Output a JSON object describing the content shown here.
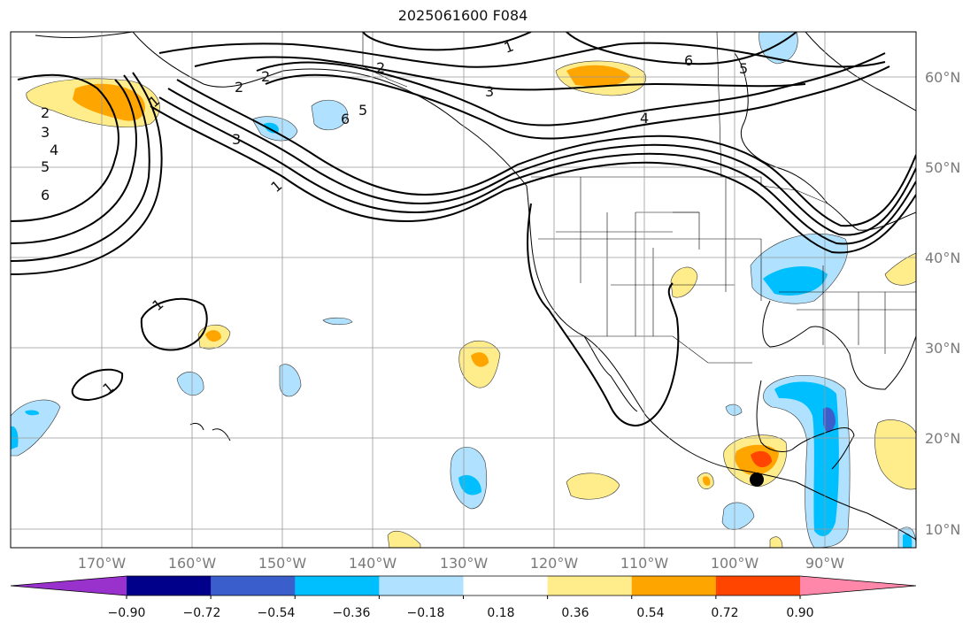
{
  "title": "2025061600 F084",
  "lat_labels": [
    "60°N",
    "50°N",
    "40°N",
    "30°N",
    "20°N",
    "10°N"
  ],
  "lon_labels": [
    "170°W",
    "160°W",
    "150°W",
    "140°W",
    "130°W",
    "120°W",
    "110°W",
    "100°W",
    "90°W"
  ],
  "colorbar": {
    "colors": [
      "#9932cc",
      "#00008b",
      "#3a5fcd",
      "#00bfff",
      "#b0e2ff",
      "#ffffff",
      "#ffec8b",
      "#ffa500",
      "#ff4500",
      "#b22222",
      "#ff88aa"
    ],
    "ticks": [
      "−0.90",
      "−0.72",
      "−0.54",
      "−0.36",
      "−0.18",
      "0.18",
      "0.36",
      "0.54",
      "0.72",
      "0.90"
    ]
  },
  "contour_labels": [
    "1",
    "1",
    "1",
    "1",
    "1",
    "2",
    "2",
    "2",
    "2",
    "3",
    "3",
    "3",
    "4",
    "4",
    "5",
    "5",
    "5",
    "6",
    "6",
    "6"
  ]
}
